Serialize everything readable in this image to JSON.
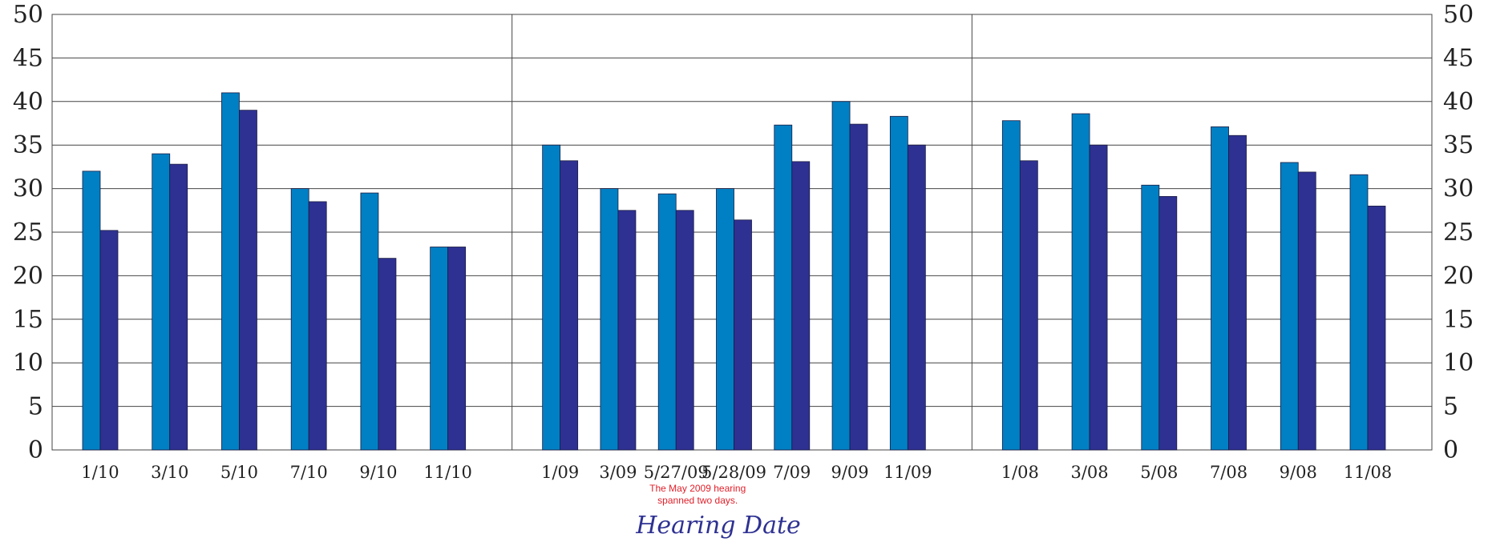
{
  "chart_data": {
    "type": "bar",
    "title": "",
    "xlabel": "Hearing Date",
    "ylabel": "",
    "ylim": [
      0,
      50
    ],
    "y_ticks": [
      0,
      5,
      10,
      15,
      20,
      25,
      30,
      35,
      40,
      45,
      50
    ],
    "grid": true,
    "legend": "none",
    "colors": {
      "series_a": "#0080c4",
      "series_b": "#2e3192",
      "grid": "#444444",
      "note": "#e0202a",
      "xlabel": "#2e3192"
    },
    "groups": [
      {
        "categories": [
          "1/10",
          "3/10",
          "5/10",
          "7/10",
          "9/10",
          "11/10"
        ],
        "series": [
          {
            "values": [
              32,
              34,
              41,
              30,
              29.5,
              23.3
            ]
          },
          {
            "values": [
              25.2,
              32.8,
              39,
              28.5,
              22,
              23.3
            ]
          }
        ]
      },
      {
        "categories": [
          "1/09",
          "3/09",
          "5/27/09",
          "5/28/09",
          "7/09",
          "9/09",
          "11/09"
        ],
        "series": [
          {
            "values": [
              35,
              30,
              29.4,
              30,
              37.3,
              40,
              38.3
            ]
          },
          {
            "values": [
              33.2,
              27.5,
              27.5,
              26.4,
              33.1,
              37.4,
              35
            ]
          }
        ]
      },
      {
        "categories": [
          "1/08",
          "3/08",
          "5/08",
          "7/08",
          "9/08",
          "11/08"
        ],
        "series": [
          {
            "values": [
              37.8,
              38.6,
              30.4,
              37.1,
              33,
              31.6
            ]
          },
          {
            "values": [
              33.2,
              35,
              29.1,
              36.1,
              31.9,
              28
            ]
          }
        ]
      }
    ],
    "annotation": {
      "category": "5/27/09",
      "lines": [
        "The May 2009 hearing",
        "spanned two days."
      ]
    }
  }
}
